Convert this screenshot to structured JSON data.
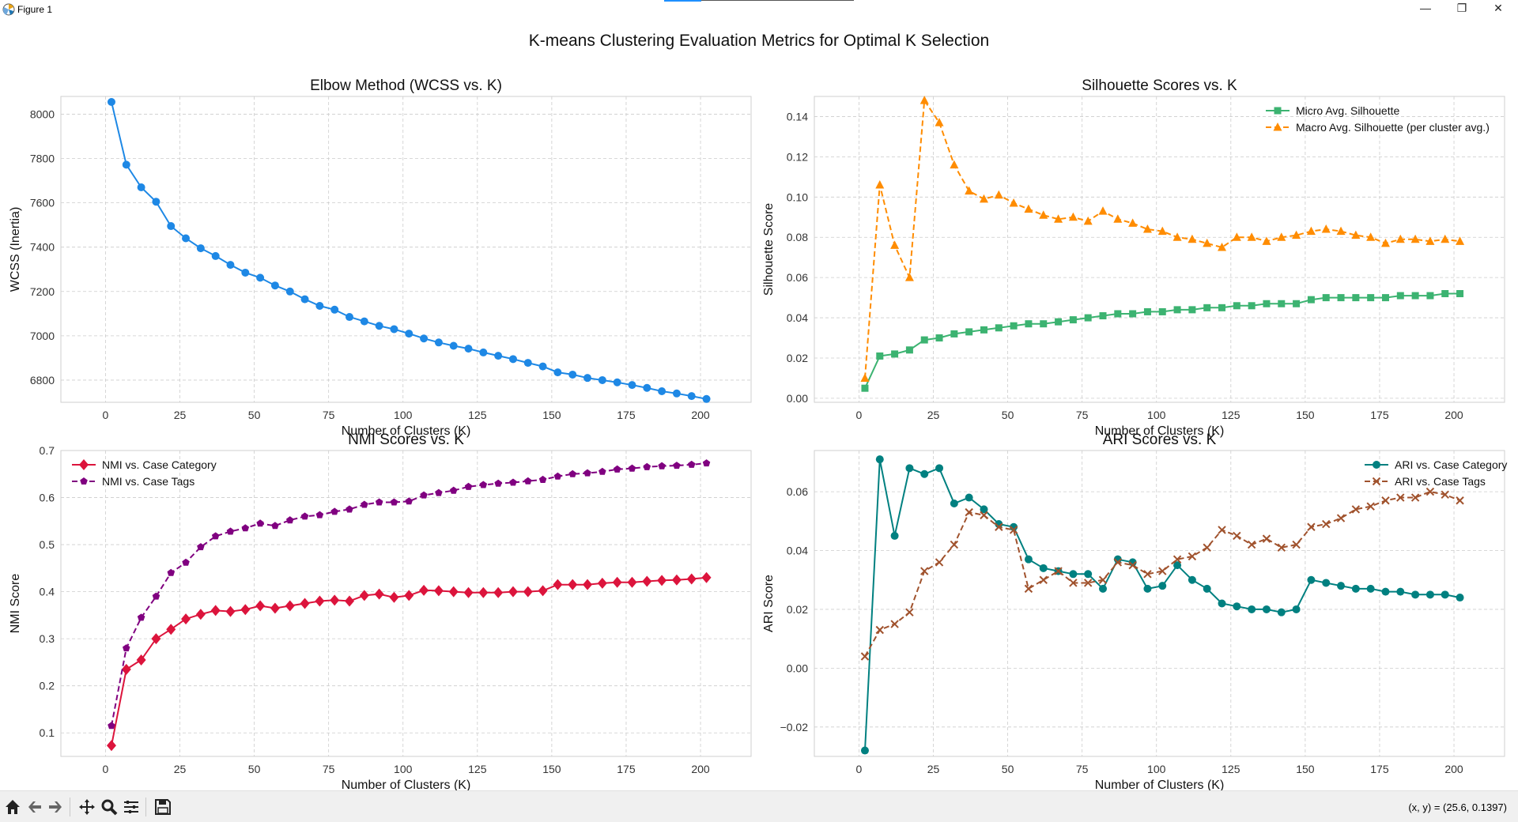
{
  "window": {
    "title": "Figure 1",
    "controls": {
      "minimize": "—",
      "maximize": "❐",
      "close": "✕"
    }
  },
  "toolbar": {
    "buttons": [
      "home-icon",
      "back-arrow-icon",
      "forward-arrow-icon",
      "pan-icon",
      "zoom-icon",
      "configure-subplots-icon",
      "save-icon"
    ],
    "coordinates": "(x, y) = (25.6, 0.1397)"
  },
  "figure": {
    "suptitle": "K-means Clustering Evaluation Metrics for Optimal K Selection"
  },
  "chart_data": [
    {
      "type": "line",
      "title": "Elbow Method (WCSS vs. K)",
      "xlabel": "Number of Clusters (K)",
      "ylabel": "WCSS (Inertia)",
      "xlim": [
        -15,
        217
      ],
      "ylim": [
        6700,
        8080
      ],
      "xticks": [
        0,
        25,
        50,
        75,
        100,
        125,
        150,
        175,
        200
      ],
      "yticks": [
        6800,
        7000,
        7200,
        7400,
        7600,
        7800,
        8000
      ],
      "grid": true,
      "legend": "none",
      "x": [
        2,
        7,
        12,
        17,
        22,
        27,
        32,
        37,
        42,
        47,
        52,
        57,
        62,
        67,
        72,
        77,
        82,
        87,
        92,
        97,
        102,
        107,
        112,
        117,
        122,
        127,
        132,
        137,
        142,
        147,
        152,
        157,
        162,
        167,
        172,
        177,
        182,
        187,
        192,
        197,
        202
      ],
      "series": [
        {
          "color": "#1e88e5",
          "marker": "circle",
          "linestyle": "solid",
          "values": [
            8055,
            7772,
            7670,
            7605,
            7495,
            7440,
            7395,
            7360,
            7320,
            7285,
            7262,
            7227,
            7200,
            7165,
            7135,
            7118,
            7085,
            7065,
            7045,
            7030,
            7010,
            6988,
            6970,
            6955,
            6942,
            6925,
            6910,
            6895,
            6878,
            6862,
            6835,
            6825,
            6810,
            6800,
            6790,
            6778,
            6765,
            6750,
            6740,
            6728,
            6715
          ]
        }
      ]
    },
    {
      "type": "line",
      "title": "Silhouette Scores vs. K",
      "xlabel": "Number of Clusters (K)",
      "ylabel": "Silhouette Score",
      "xlim": [
        -15,
        217
      ],
      "ylim": [
        -0.002,
        0.15
      ],
      "xticks": [
        0,
        25,
        50,
        75,
        100,
        125,
        150,
        175,
        200
      ],
      "yticks": [
        0.0,
        0.02,
        0.04,
        0.06,
        0.08,
        0.1,
        0.12,
        0.14
      ],
      "ytick_labels": [
        "0.00",
        "0.02",
        "0.04",
        "0.06",
        "0.08",
        "0.10",
        "0.12",
        "0.14"
      ],
      "grid": true,
      "legend": "upper right",
      "x": [
        2,
        7,
        12,
        17,
        22,
        27,
        32,
        37,
        42,
        47,
        52,
        57,
        62,
        67,
        72,
        77,
        82,
        87,
        92,
        97,
        102,
        107,
        112,
        117,
        122,
        127,
        132,
        137,
        142,
        147,
        152,
        157,
        162,
        167,
        172,
        177,
        182,
        187,
        192,
        197,
        202
      ],
      "series": [
        {
          "name": "Micro Avg. Silhouette",
          "color": "#3cb371",
          "marker": "square",
          "linestyle": "solid",
          "values": [
            0.005,
            0.021,
            0.022,
            0.024,
            0.029,
            0.03,
            0.032,
            0.033,
            0.034,
            0.035,
            0.036,
            0.037,
            0.037,
            0.038,
            0.039,
            0.04,
            0.041,
            0.042,
            0.042,
            0.043,
            0.043,
            0.044,
            0.044,
            0.045,
            0.045,
            0.046,
            0.046,
            0.047,
            0.047,
            0.047,
            0.049,
            0.05,
            0.05,
            0.05,
            0.05,
            0.05,
            0.051,
            0.051,
            0.051,
            0.052,
            0.052
          ]
        },
        {
          "name": "Macro Avg. Silhouette (per cluster avg.)",
          "color": "#ff8c00",
          "marker": "triangle",
          "linestyle": "dashed",
          "values": [
            0.01,
            0.106,
            0.076,
            0.06,
            0.148,
            0.137,
            0.116,
            0.103,
            0.099,
            0.101,
            0.097,
            0.094,
            0.091,
            0.089,
            0.09,
            0.088,
            0.093,
            0.089,
            0.087,
            0.084,
            0.083,
            0.08,
            0.079,
            0.077,
            0.075,
            0.08,
            0.08,
            0.078,
            0.08,
            0.081,
            0.083,
            0.084,
            0.083,
            0.081,
            0.08,
            0.077,
            0.079,
            0.079,
            0.078,
            0.079,
            0.078
          ]
        }
      ]
    },
    {
      "type": "line",
      "title": "NMI Scores vs. K",
      "xlabel": "Number of Clusters (K)",
      "ylabel": "NMI Score",
      "xlim": [
        -15,
        217
      ],
      "ylim": [
        0.05,
        0.7
      ],
      "xticks": [
        0,
        25,
        50,
        75,
        100,
        125,
        150,
        175,
        200
      ],
      "yticks": [
        0.1,
        0.2,
        0.3,
        0.4,
        0.5,
        0.6,
        0.7
      ],
      "grid": true,
      "legend": "upper left",
      "x": [
        2,
        7,
        12,
        17,
        22,
        27,
        32,
        37,
        42,
        47,
        52,
        57,
        62,
        67,
        72,
        77,
        82,
        87,
        92,
        97,
        102,
        107,
        112,
        117,
        122,
        127,
        132,
        137,
        142,
        147,
        152,
        157,
        162,
        167,
        172,
        177,
        182,
        187,
        192,
        197,
        202
      ],
      "series": [
        {
          "name": "NMI vs. Case Category",
          "color": "#dc143c",
          "marker": "diamond",
          "linestyle": "solid",
          "values": [
            0.073,
            0.235,
            0.255,
            0.3,
            0.32,
            0.342,
            0.352,
            0.36,
            0.358,
            0.362,
            0.37,
            0.365,
            0.37,
            0.375,
            0.38,
            0.382,
            0.38,
            0.392,
            0.395,
            0.388,
            0.392,
            0.403,
            0.402,
            0.4,
            0.398,
            0.398,
            0.398,
            0.4,
            0.4,
            0.402,
            0.415,
            0.415,
            0.415,
            0.418,
            0.42,
            0.42,
            0.422,
            0.424,
            0.425,
            0.427,
            0.43
          ]
        },
        {
          "name": "NMI vs. Case Tags",
          "color": "#800080",
          "marker": "pentagon",
          "linestyle": "dashed",
          "values": [
            0.115,
            0.28,
            0.345,
            0.39,
            0.44,
            0.462,
            0.495,
            0.518,
            0.528,
            0.535,
            0.545,
            0.54,
            0.552,
            0.56,
            0.563,
            0.57,
            0.575,
            0.585,
            0.59,
            0.59,
            0.592,
            0.605,
            0.61,
            0.615,
            0.623,
            0.627,
            0.63,
            0.632,
            0.635,
            0.638,
            0.645,
            0.65,
            0.652,
            0.655,
            0.66,
            0.662,
            0.665,
            0.667,
            0.668,
            0.67,
            0.673
          ]
        }
      ]
    },
    {
      "type": "line",
      "title": "ARI Scores vs. K",
      "xlabel": "Number of Clusters (K)",
      "ylabel": "ARI Score",
      "xlim": [
        -15,
        217
      ],
      "ylim": [
        -0.03,
        0.074
      ],
      "xticks": [
        0,
        25,
        50,
        75,
        100,
        125,
        150,
        175,
        200
      ],
      "yticks": [
        -0.02,
        0.0,
        0.02,
        0.04,
        0.06
      ],
      "ytick_labels": [
        "−0.02",
        "0.00",
        "0.02",
        "0.04",
        "0.06"
      ],
      "grid": true,
      "legend": "upper right",
      "x": [
        2,
        7,
        12,
        17,
        22,
        27,
        32,
        37,
        42,
        47,
        52,
        57,
        62,
        67,
        72,
        77,
        82,
        87,
        92,
        97,
        102,
        107,
        112,
        117,
        122,
        127,
        132,
        137,
        142,
        147,
        152,
        157,
        162,
        167,
        172,
        177,
        182,
        187,
        192,
        197,
        202
      ],
      "series": [
        {
          "name": "ARI vs. Case Category",
          "color": "#008080",
          "marker": "circle",
          "linestyle": "solid",
          "values": [
            -0.028,
            0.071,
            0.045,
            0.068,
            0.066,
            0.068,
            0.056,
            0.058,
            0.054,
            0.049,
            0.048,
            0.037,
            0.034,
            0.033,
            0.032,
            0.032,
            0.027,
            0.037,
            0.036,
            0.027,
            0.028,
            0.035,
            0.03,
            0.027,
            0.022,
            0.021,
            0.02,
            0.02,
            0.019,
            0.02,
            0.03,
            0.029,
            0.028,
            0.027,
            0.027,
            0.026,
            0.026,
            0.025,
            0.025,
            0.025,
            0.024
          ]
        },
        {
          "name": "ARI vs. Case Tags",
          "color": "#a0522d",
          "marker": "x",
          "linestyle": "dashed",
          "values": [
            0.004,
            0.013,
            0.015,
            0.019,
            0.033,
            0.036,
            0.042,
            0.053,
            0.052,
            0.048,
            0.047,
            0.027,
            0.03,
            0.033,
            0.029,
            0.029,
            0.03,
            0.036,
            0.035,
            0.032,
            0.033,
            0.037,
            0.038,
            0.041,
            0.047,
            0.045,
            0.042,
            0.044,
            0.041,
            0.042,
            0.048,
            0.049,
            0.051,
            0.054,
            0.055,
            0.057,
            0.058,
            0.058,
            0.06,
            0.059,
            0.057
          ]
        }
      ]
    }
  ]
}
